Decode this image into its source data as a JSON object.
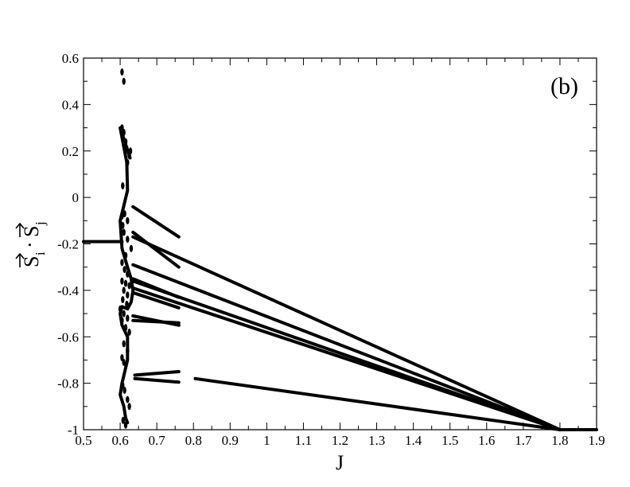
{
  "chart_data": {
    "type": "line",
    "panel_label": "(b)",
    "xlabel": "J",
    "ylabel_main": "S",
    "ylabel_sub_i": "i",
    "ylabel_dot": "·",
    "ylabel_sub_j": "j",
    "xlim": [
      0.5,
      1.9
    ],
    "ylim": [
      -1,
      0.6
    ],
    "x_ticks": [
      0.5,
      0.6,
      0.7,
      0.8,
      0.9,
      1,
      1.1,
      1.2,
      1.3,
      1.4,
      1.5,
      1.6,
      1.7,
      1.8,
      1.9
    ],
    "x_tick_labels": [
      "0.5",
      "0.6",
      "0.7",
      "0.8",
      "0.9",
      "1",
      "1.1",
      "1.2",
      "1.3",
      "1.4",
      "1.5",
      "1.6",
      "1.7",
      "1.8",
      "1.9"
    ],
    "y_ticks": [
      -1,
      -0.8,
      -0.6,
      -0.4,
      -0.2,
      0,
      0.2,
      0.4,
      0.6
    ],
    "y_tick_labels": [
      "-1",
      "-0.8",
      "-0.6",
      "-0.4",
      "-0.2",
      "0",
      "0.2",
      "0.4",
      "0.6"
    ],
    "grid": false,
    "line_color": "#000000",
    "series": [
      {
        "x": [
          0.5,
          0.605
        ],
        "y": [
          -0.19,
          -0.19
        ]
      },
      {
        "x": [
          0.805,
          1.8
        ],
        "y": [
          -0.78,
          -1.0
        ]
      },
      {
        "x": [
          0.635,
          1.8
        ],
        "y": [
          -0.29,
          -1.0
        ]
      },
      {
        "x": [
          0.635,
          1.8
        ],
        "y": [
          -0.39,
          -1.0
        ]
      },
      {
        "x": [
          0.635,
          1.8
        ],
        "y": [
          -0.36,
          -1.0
        ]
      },
      {
        "x": [
          0.635,
          1.8
        ],
        "y": [
          -0.17,
          -1.0
        ]
      },
      {
        "x": [
          1.8,
          1.9
        ],
        "y": [
          -1.0,
          -1.0
        ]
      },
      {
        "x": [
          0.635,
          0.76
        ],
        "y": [
          -0.04,
          -0.17
        ]
      },
      {
        "x": [
          0.635,
          0.76
        ],
        "y": [
          -0.15,
          -0.3
        ]
      },
      {
        "x": [
          0.635,
          0.76
        ],
        "y": [
          -0.35,
          -0.43
        ]
      },
      {
        "x": [
          0.635,
          0.76
        ],
        "y": [
          -0.41,
          -0.475
        ]
      },
      {
        "x": [
          0.635,
          0.76
        ],
        "y": [
          -0.51,
          -0.55
        ]
      },
      {
        "x": [
          0.635,
          0.76
        ],
        "y": [
          -0.53,
          -0.54
        ]
      },
      {
        "x": [
          0.64,
          0.76
        ],
        "y": [
          -0.765,
          -0.75
        ]
      },
      {
        "x": [
          0.64,
          0.76
        ],
        "y": [
          -0.78,
          -0.795
        ]
      },
      {
        "x": [
          0.627,
          0.6,
          0.618,
          0.62,
          0.6,
          0.605,
          0.62,
          0.63,
          0.635,
          0.63,
          0.62,
          0.605,
          0.6,
          0.605,
          0.62,
          0.62,
          0.605,
          0.6,
          0.61,
          0.615,
          0.62
        ],
        "y": [
          0.17,
          0.3,
          0.15,
          0.03,
          -0.1,
          -0.22,
          -0.3,
          -0.35,
          -0.4,
          -0.45,
          -0.48,
          -0.47,
          -0.5,
          -0.55,
          -0.6,
          -0.7,
          -0.8,
          -0.85,
          -0.9,
          -0.95,
          -0.97
        ]
      }
    ],
    "points": [
      {
        "x": 0.605,
        "y": 0.54
      },
      {
        "x": 0.61,
        "y": 0.5
      },
      {
        "x": 0.605,
        "y": 0.3
      },
      {
        "x": 0.61,
        "y": 0.28
      },
      {
        "x": 0.615,
        "y": 0.24
      },
      {
        "x": 0.618,
        "y": 0.21
      },
      {
        "x": 0.607,
        "y": 0.05
      },
      {
        "x": 0.62,
        "y": 0.15
      },
      {
        "x": 0.625,
        "y": 0.18
      },
      {
        "x": 0.628,
        "y": 0.2
      },
      {
        "x": 0.605,
        "y": -0.08
      },
      {
        "x": 0.612,
        "y": -0.07
      },
      {
        "x": 0.62,
        "y": -0.1
      },
      {
        "x": 0.607,
        "y": -0.12
      },
      {
        "x": 0.61,
        "y": -0.15
      },
      {
        "x": 0.62,
        "y": -0.18
      },
      {
        "x": 0.63,
        "y": -0.22
      },
      {
        "x": 0.615,
        "y": -0.25
      },
      {
        "x": 0.605,
        "y": -0.28
      },
      {
        "x": 0.612,
        "y": -0.31
      },
      {
        "x": 0.62,
        "y": -0.33
      },
      {
        "x": 0.605,
        "y": -0.36
      },
      {
        "x": 0.615,
        "y": -0.37
      },
      {
        "x": 0.625,
        "y": -0.38
      },
      {
        "x": 0.61,
        "y": -0.4
      },
      {
        "x": 0.62,
        "y": -0.42
      },
      {
        "x": 0.607,
        "y": -0.44
      },
      {
        "x": 0.618,
        "y": -0.46
      },
      {
        "x": 0.6,
        "y": -0.48
      },
      {
        "x": 0.61,
        "y": -0.5
      },
      {
        "x": 0.62,
        "y": -0.52
      },
      {
        "x": 0.605,
        "y": -0.53
      },
      {
        "x": 0.615,
        "y": -0.56
      },
      {
        "x": 0.625,
        "y": -0.58
      },
      {
        "x": 0.61,
        "y": -0.63
      },
      {
        "x": 0.62,
        "y": -0.66
      },
      {
        "x": 0.605,
        "y": -0.69
      },
      {
        "x": 0.61,
        "y": -0.71
      },
      {
        "x": 0.607,
        "y": -0.81
      },
      {
        "x": 0.612,
        "y": -0.83
      },
      {
        "x": 0.62,
        "y": -0.87
      },
      {
        "x": 0.625,
        "y": -0.9
      },
      {
        "x": 0.608,
        "y": -0.96
      },
      {
        "x": 0.615,
        "y": -0.98
      }
    ]
  }
}
